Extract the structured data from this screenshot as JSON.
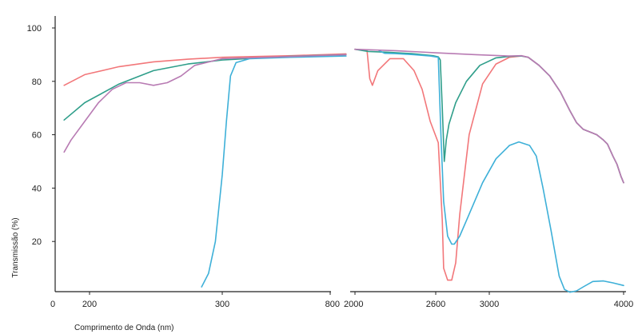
{
  "chart_data": {
    "type": "line",
    "title": "",
    "xlabel": "Comprimento de Onda (nm)",
    "ylabel": "Transmissão (%)",
    "ylim": [
      0,
      100
    ],
    "grid": false,
    "legend": "none",
    "y_ticks": [
      20,
      40,
      60,
      80,
      100
    ],
    "x_tick_labels": [
      "0",
      "200",
      "300",
      "800",
      "2000",
      "2600",
      "3000",
      "4000"
    ],
    "x_axis_segments": [
      {
        "range": [
          180,
          400
        ],
        "break_at": 800
      },
      {
        "range": [
          2000,
          4000
        ]
      }
    ],
    "series": [
      {
        "color": "#f2777a",
        "points": [
          [
            185,
            78.5
          ],
          [
            200,
            82.5
          ],
          [
            225,
            85.5
          ],
          [
            250,
            87.3
          ],
          [
            275,
            88.3
          ],
          [
            300,
            89
          ],
          [
            350,
            89.6
          ],
          [
            390,
            90.3
          ],
          [
            2000,
            92
          ],
          [
            2090,
            91.5
          ],
          [
            2110,
            81
          ],
          [
            2130,
            78.5
          ],
          [
            2170,
            84
          ],
          [
            2260,
            88.5
          ],
          [
            2360,
            88.5
          ],
          [
            2440,
            84
          ],
          [
            2500,
            77
          ],
          [
            2560,
            65
          ],
          [
            2620,
            57
          ],
          [
            2650,
            28
          ],
          [
            2660,
            10
          ],
          [
            2690,
            5.5
          ],
          [
            2720,
            5.5
          ],
          [
            2750,
            12
          ],
          [
            2780,
            30
          ],
          [
            2850,
            60
          ],
          [
            2950,
            79
          ],
          [
            3050,
            86.5
          ],
          [
            3150,
            89
          ],
          [
            3240,
            89.5
          ],
          [
            3290,
            89
          ],
          [
            3370,
            86
          ],
          [
            3450,
            82
          ],
          [
            3530,
            76
          ],
          [
            3600,
            69
          ],
          [
            3650,
            64.5
          ],
          [
            3700,
            62
          ],
          [
            3760,
            60.8
          ],
          [
            3800,
            60
          ],
          [
            3850,
            58
          ],
          [
            3880,
            56.5
          ],
          [
            3920,
            52
          ],
          [
            3950,
            49
          ],
          [
            3980,
            44.5
          ],
          [
            4000,
            42
          ]
        ]
      },
      {
        "color": "#2f9e8a",
        "points": [
          [
            185,
            65.5
          ],
          [
            200,
            72
          ],
          [
            225,
            79
          ],
          [
            250,
            84
          ],
          [
            275,
            86.5
          ],
          [
            300,
            88
          ],
          [
            350,
            89.4
          ],
          [
            390,
            90
          ],
          [
            2000,
            92
          ],
          [
            2100,
            91.2
          ],
          [
            2250,
            90.9
          ],
          [
            2420,
            90.4
          ],
          [
            2580,
            89.6
          ],
          [
            2620,
            89.2
          ],
          [
            2635,
            88
          ],
          [
            2650,
            70
          ],
          [
            2665,
            50
          ],
          [
            2680,
            58
          ],
          [
            2700,
            64
          ],
          [
            2750,
            72
          ],
          [
            2830,
            80
          ],
          [
            2930,
            86
          ],
          [
            3050,
            88.8
          ],
          [
            3160,
            89.4
          ],
          [
            3240,
            89.5
          ],
          [
            3290,
            89
          ],
          [
            3370,
            86
          ],
          [
            3450,
            82
          ],
          [
            3530,
            76
          ],
          [
            3600,
            69
          ],
          [
            3650,
            64.5
          ],
          [
            3700,
            62
          ],
          [
            3760,
            60.8
          ],
          [
            3800,
            60
          ],
          [
            3850,
            58
          ],
          [
            3880,
            56.5
          ],
          [
            3920,
            52
          ],
          [
            3950,
            49
          ],
          [
            3980,
            44.5
          ],
          [
            4000,
            42
          ]
        ]
      },
      {
        "color": "#3eb0d8",
        "points": [
          [
            285,
            3
          ],
          [
            290,
            8
          ],
          [
            295,
            20
          ],
          [
            300,
            45
          ],
          [
            303,
            65
          ],
          [
            306,
            82
          ],
          [
            310,
            87
          ],
          [
            320,
            88.5
          ],
          [
            350,
            89
          ],
          [
            390,
            89.5
          ],
          [
            2180,
            91.5
          ],
          [
            2220,
            90.5
          ],
          [
            2300,
            90.4
          ],
          [
            2440,
            90
          ],
          [
            2560,
            89.5
          ],
          [
            2620,
            89
          ],
          [
            2640,
            60
          ],
          [
            2660,
            35
          ],
          [
            2690,
            22
          ],
          [
            2720,
            19
          ],
          [
            2740,
            19
          ],
          [
            2780,
            22
          ],
          [
            2840,
            29
          ],
          [
            2950,
            42
          ],
          [
            3050,
            51
          ],
          [
            3150,
            56
          ],
          [
            3220,
            57.3
          ],
          [
            3300,
            56
          ],
          [
            3350,
            52
          ],
          [
            3400,
            40
          ],
          [
            3460,
            24
          ],
          [
            3520,
            7
          ],
          [
            3560,
            2
          ],
          [
            3600,
            1
          ],
          [
            3650,
            1.5
          ],
          [
            3700,
            3
          ],
          [
            3770,
            5
          ],
          [
            3850,
            5.2
          ],
          [
            3920,
            4.5
          ],
          [
            4000,
            3.5
          ]
        ]
      },
      {
        "color": "#b87bb3",
        "points": [
          [
            185,
            53.5
          ],
          [
            190,
            58
          ],
          [
            200,
            65
          ],
          [
            210,
            72
          ],
          [
            220,
            77
          ],
          [
            230,
            79.5
          ],
          [
            240,
            79.5
          ],
          [
            250,
            78.5
          ],
          [
            260,
            79.5
          ],
          [
            270,
            82
          ],
          [
            280,
            86
          ],
          [
            300,
            88.5
          ],
          [
            350,
            89.3
          ],
          [
            390,
            90
          ],
          [
            2000,
            92
          ],
          [
            2300,
            91.5
          ],
          [
            2600,
            90.7
          ],
          [
            2900,
            90
          ],
          [
            3150,
            89.5
          ],
          [
            3240,
            89.6
          ],
          [
            3290,
            89
          ],
          [
            3370,
            86
          ],
          [
            3450,
            82
          ],
          [
            3530,
            76
          ],
          [
            3600,
            69
          ],
          [
            3650,
            64.5
          ],
          [
            3700,
            62
          ],
          [
            3760,
            60.8
          ],
          [
            3800,
            60
          ],
          [
            3850,
            58
          ],
          [
            3880,
            56.5
          ],
          [
            3920,
            52
          ],
          [
            3950,
            49
          ],
          [
            3980,
            44.5
          ],
          [
            4000,
            42
          ]
        ]
      }
    ]
  }
}
